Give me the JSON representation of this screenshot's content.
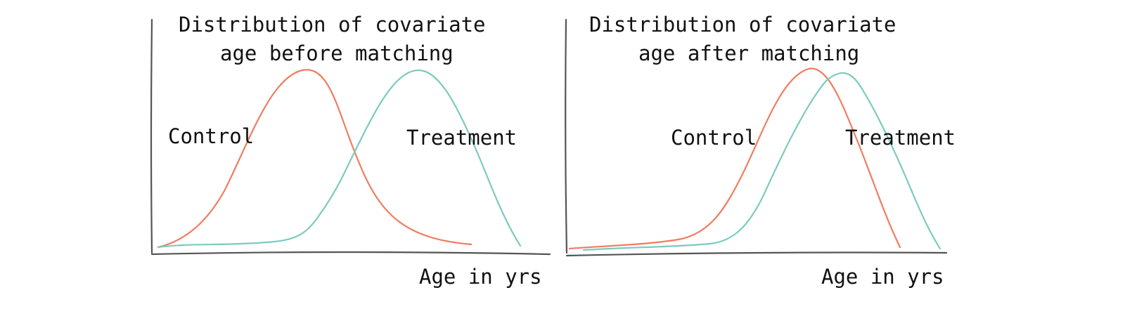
{
  "colors": {
    "control": "#f07c5f",
    "treatment": "#7ccbbd",
    "axis": "#555555"
  },
  "panels": [
    {
      "title_line1": "Distribution of covariate",
      "title_line2": "age before matching",
      "control_label": "Control",
      "treatment_label": "Treatment",
      "xlabel": "Age in yrs"
    },
    {
      "title_line1": "Distribution of covariate",
      "title_line2": "age after matching",
      "control_label": "Control",
      "treatment_label": "Treatment",
      "xlabel": "Age in yrs"
    }
  ]
}
